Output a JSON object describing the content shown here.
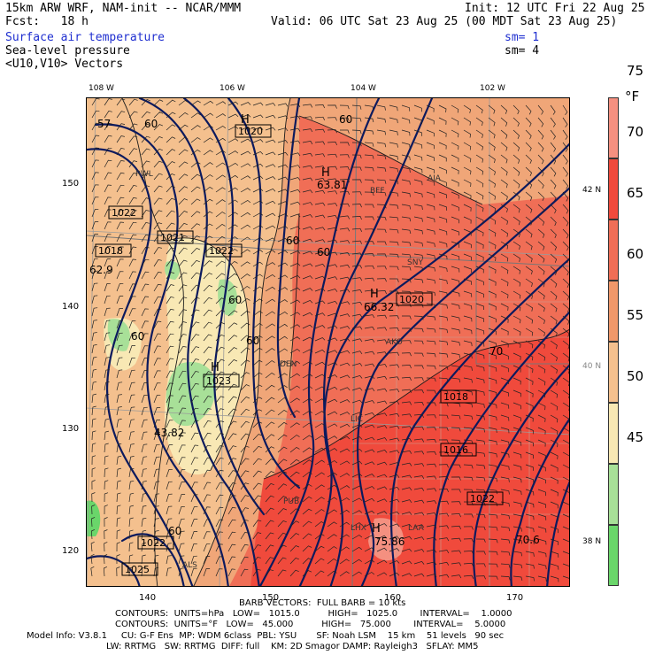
{
  "header": {
    "model_line": "15km ARW WRF, NAM-init -- NCAR/MMM",
    "init_line": "Init: 12 UTC Fri 22 Aug 25",
    "fcst_line": "Fcst:   18 h",
    "valid_line": "Valid: 06 UTC Sat 23 Aug 25 (00 MDT Sat 23 Aug 25)",
    "field1": "Surface air temperature",
    "field1_sm": "sm= 1",
    "field2": "Sea-level pressure",
    "field2_sm": "sm= 4",
    "field3": "<U10,V10> Vectors"
  },
  "axes": {
    "lon_labels": [
      "108 W",
      "106 W",
      "104 W",
      "102 W"
    ],
    "lat_labels": [
      "42 N",
      "40 N",
      "38 N"
    ],
    "left_ticks": [
      "150",
      "140",
      "130",
      "120"
    ],
    "bottom_ticks": [
      "140",
      "150",
      "160",
      "170"
    ]
  },
  "colorbar": {
    "unit": "°F",
    "labels": [
      "75",
      "70",
      "65",
      "60",
      "55",
      "50",
      "45"
    ],
    "colors": [
      "#f49080",
      "#f04a3c",
      "#f06e56",
      "#f0986a",
      "#f4c08e",
      "#f8e8b4",
      "#a8e098",
      "#6ad66a"
    ]
  },
  "map_labels": {
    "temp_labels": [
      "57",
      "60",
      "60",
      "60",
      "60",
      "60",
      "60",
      "60",
      "60",
      "70",
      "62.9",
      "63.81",
      "66.32",
      "43.82",
      "75.86",
      "70.6"
    ],
    "pressure_boxes": [
      "1020",
      "1022",
      "1021",
      "1018",
      "1022",
      "1020",
      "1018",
      "1016",
      "1022",
      "1022",
      "1025",
      "1023"
    ],
    "high_markers": [
      "H",
      "H",
      "H",
      "H",
      "H"
    ],
    "cities": [
      "RWL",
      "BFF",
      "AIA",
      "SNY",
      "DEN",
      "AKO",
      "LIC",
      "PUB",
      "LHX",
      "LAA",
      "ALS"
    ]
  },
  "footer": {
    "barb": "BARB VECTORS:  FULL BARB = 10 kts",
    "contours1": "CONTOURS:  UNITS=hPa   LOW=   1015.0          HIGH=   1025.0        INTERVAL=    1.0000",
    "contours2": "CONTOURS:  UNITS=°F   LOW=   45.000          HIGH=   75.000        INTERVAL=    5.0000",
    "model_info1": "Model Info: V3.8.1     CU: G-F Ens  MP: WDM 6class  PBL: YSU       SF: Noah LSM    15 km    51 levels   90 sec",
    "model_info2": "LW: RRTMG   SW: RRTMG  DIFF: full    KM: 2D Smagor DAMP: Rayleigh3   SFLAY: MM5"
  }
}
